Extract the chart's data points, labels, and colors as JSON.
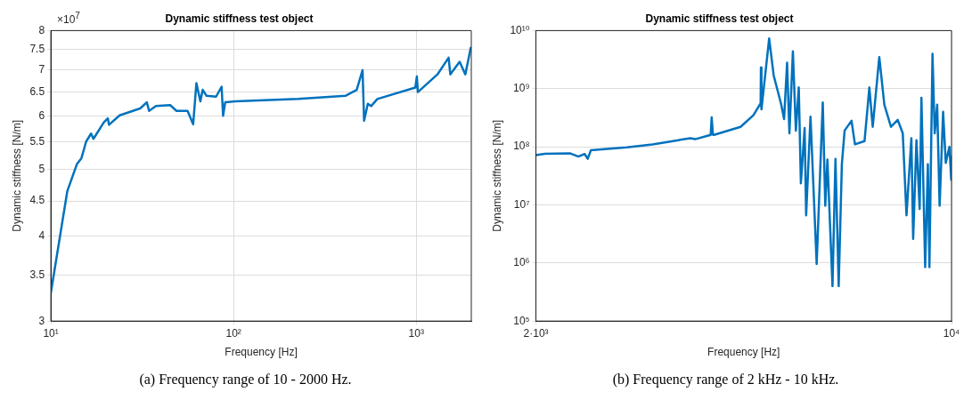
{
  "chart_data": [
    {
      "type": "line",
      "title": "Dynamic stiffness test object",
      "xlabel": "Frequency [Hz]",
      "ylabel": "Dynamic stiffness [N/m]",
      "annotations": [
        "×10$^{7}$",
        "(a) Frequency range of 10 - 2000 Hz."
      ],
      "log": "xy",
      "grid": true,
      "color": "#0072bd",
      "x": [
        10,
        12.3,
        13.9,
        14.7,
        15.6,
        16.6,
        17.1,
        19.5,
        20.5,
        20.8,
        23.8,
        30.8,
        33.5,
        34.5,
        37.6,
        45,
        48.7,
        56,
        60.1,
        62.6,
        65.8,
        67.8,
        71,
        80.2,
        86,
        87.6,
        90,
        102,
        226,
        411,
        472,
        508,
        518,
        543,
        566,
        612,
        988,
        1007,
        1020,
        1306,
        1503,
        1535,
        1727,
        1855,
        1986,
        2000
      ],
      "values": [
        3.3,
        4.65,
        5.1,
        5.2,
        5.5,
        5.65,
        5.55,
        5.87,
        5.95,
        5.82,
        6.01,
        6.15,
        6.28,
        6.1,
        6.2,
        6.22,
        6.1,
        6.1,
        5.83,
        6.7,
        6.3,
        6.55,
        6.42,
        6.4,
        6.62,
        6,
        6.28,
        6.3,
        6.35,
        6.42,
        6.55,
        7,
        5.9,
        6.25,
        6.2,
        6.35,
        6.6,
        6.85,
        6.5,
        6.9,
        7.3,
        6.9,
        7.2,
        6.9,
        7.55,
        7.5
      ],
      "xlim": [
        10,
        2000
      ],
      "ylim": [
        3,
        8
      ],
      "xticks": [
        {
          "value": 10,
          "label": "10¹"
        },
        {
          "value": 100,
          "label": "10²"
        },
        {
          "value": 1000,
          "label": "10³"
        }
      ],
      "yticks": [
        3,
        3.5,
        4,
        4.5,
        5,
        5.5,
        6,
        6.5,
        7,
        7.5,
        8
      ]
    },
    {
      "type": "line",
      "title": "Dynamic stiffness test object",
      "xlabel": "Frequency [Hz]",
      "ylabel": "Dynamic stiffness [N/m]",
      "annotations": [
        "(b) Frequency range of 2 kHz - 10 kHz."
      ],
      "log": "xy",
      "grid": true,
      "color": "#0072bd",
      "x": [
        2000,
        2072,
        2285,
        2357,
        2415,
        2444,
        2474,
        2846,
        3141,
        3471,
        3636,
        3705,
        3935,
        3950,
        3970,
        3986,
        4417,
        4643,
        4775,
        4780,
        4790,
        4935,
        5022,
        5170,
        5229,
        5290,
        5338,
        5410,
        5473,
        5535,
        5580,
        5662,
        5695,
        5792,
        5932,
        6074,
        6133,
        6184,
        6307,
        6380,
        6460,
        6540,
        6610,
        6790,
        6880,
        7140,
        7275,
        7370,
        7560,
        7710,
        7910,
        8120,
        8280,
        8400,
        8560,
        8620,
        8730,
        8840,
        8900,
        9030,
        9125,
        9180,
        9290,
        9370,
        9460,
        9550,
        9680,
        9780,
        9920,
        9990,
        10000
      ],
      "values": [
        72000000.0,
        76000000.0,
        77000000.0,
        68000000.0,
        75000000.0,
        62000000.0,
        87000000.0,
        98000000.0,
        110000000.0,
        130000000.0,
        140000000.0,
        135000000.0,
        160000000.0,
        320000000.0,
        160000000.0,
        160000000.0,
        220000000.0,
        350000000.0,
        560000000.0,
        2300000000.0,
        440000000.0,
        7300000000.0,
        1700000000.0,
        540000000.0,
        300000000.0,
        2800000000.0,
        170000000.0,
        4400000000.0,
        190000000.0,
        1050000000.0,
        23500000.0,
        210000000.0,
        6600000.0,
        330000000.0,
        960000.0,
        580000000.0,
        9700000.0,
        60000000.0,
        400000.0,
        62000000.0,
        400000.0,
        50000000.0,
        190000000.0,
        280000000.0,
        110000000.0,
        125000000.0,
        1050000000.0,
        220000000.0,
        3500000000.0,
        530000000.0,
        220000000.0,
        290000000.0,
        170000000.0,
        6600000.0,
        140000000.0,
        2600000.0,
        130000000.0,
        8500000.0,
        700000000.0,
        850000.0,
        50000000.0,
        850000.0,
        4000000000.0,
        170000000.0,
        530000000.0,
        9700000.0,
        400000000.0,
        53000000.0,
        100000000.0,
        27000000.0,
        70000000.0
      ],
      "xlim": [
        2000,
        10000
      ],
      "ylim": [
        100000.0,
        10000000000.0
      ],
      "xticks": [
        {
          "value": 2000,
          "label": "2·10³"
        },
        {
          "value": 10000,
          "label": "10⁴"
        }
      ],
      "yticks": [
        {
          "value": 100000.0,
          "label": "10⁵"
        },
        {
          "value": 1000000.0,
          "label": "10⁶"
        },
        {
          "value": 10000000.0,
          "label": "10⁷"
        },
        {
          "value": 100000000.0,
          "label": "10⁸"
        },
        {
          "value": 1000000000.0,
          "label": "10⁹"
        },
        {
          "value": 10000000000.0,
          "label": "10¹⁰"
        }
      ]
    }
  ]
}
